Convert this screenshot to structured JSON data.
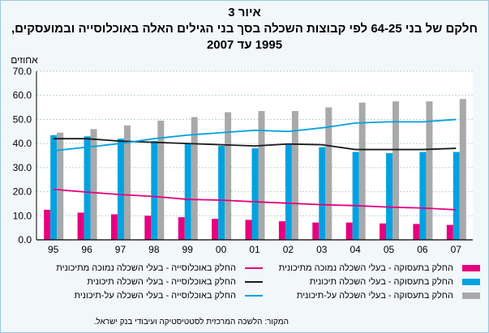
{
  "figure": {
    "number": "איור 3",
    "title_line1": "חלקם של בני 64-25 לפי קבוצות השכלה בסך בני הגילים האלה באוכלוסייה ובמועסקים,",
    "title_line2": "1995 עד 2007"
  },
  "source": "המקור: הלשכה המרכזית לסטטיסטיקה ועיבודי בנק ישראל.",
  "chart_data": {
    "type": "bar",
    "ylabel": "אחוזים",
    "ylim": [
      0,
      70
    ],
    "yticks": [
      "0.0",
      "10.0",
      "20.0",
      "30.0",
      "40.0",
      "50.0",
      "60.0",
      "70.0"
    ],
    "grid": true,
    "legend_position": "bottom",
    "categories": [
      "95",
      "96",
      "97",
      "98",
      "99",
      "00",
      "01",
      "02",
      "03",
      "04",
      "05",
      "06",
      "07"
    ],
    "bar_series": [
      {
        "name": "החלק בתעסוקה - בעלי השכלה נמוכה מתיכונית",
        "color": "#e6007e",
        "values": [
          12.5,
          11.3,
          10.6,
          10.0,
          9.4,
          8.7,
          8.3,
          7.7,
          7.2,
          7.2,
          6.8,
          6.6,
          6.2
        ]
      },
      {
        "name": "החלק בתעסוקה - בעלי השכלה תיכונית",
        "color": "#00a2e0",
        "values": [
          43.5,
          43.0,
          42.0,
          41.0,
          40.0,
          39.0,
          38.0,
          39.5,
          38.5,
          36.5,
          36.0,
          36.5,
          36.5
        ]
      },
      {
        "name": "החלק בתעסוקה - בעלי השכלה על-תיכונית",
        "color": "#a8a9ab",
        "values": [
          44.5,
          46.0,
          47.5,
          49.5,
          51.0,
          53.0,
          53.5,
          53.5,
          55.0,
          57.0,
          57.5,
          57.5,
          58.5
        ]
      }
    ],
    "line_series": [
      {
        "name": "החלק באוכלוסייה - בעלי השכלה נמוכה מתיכונית",
        "color": "#e6007e",
        "values": [
          21.0,
          19.8,
          18.8,
          18.0,
          16.8,
          16.5,
          15.8,
          15.2,
          14.6,
          14.2,
          13.6,
          13.2,
          12.5
        ]
      },
      {
        "name": "החלק באוכלוסייה - בעלי השכלה תיכונית",
        "color": "#1a1a1a",
        "values": [
          42.0,
          42.0,
          41.0,
          40.5,
          40.0,
          39.5,
          39.0,
          39.8,
          39.5,
          37.5,
          37.5,
          37.5,
          38.0
        ]
      },
      {
        "name": "החלק באוכלוסייה - בעלי השכלה על-תיכונית",
        "color": "#00a2e0",
        "values": [
          37.0,
          38.5,
          40.0,
          42.0,
          43.5,
          44.5,
          45.5,
          45.0,
          46.5,
          48.5,
          49.0,
          49.0,
          50.0
        ]
      }
    ]
  }
}
